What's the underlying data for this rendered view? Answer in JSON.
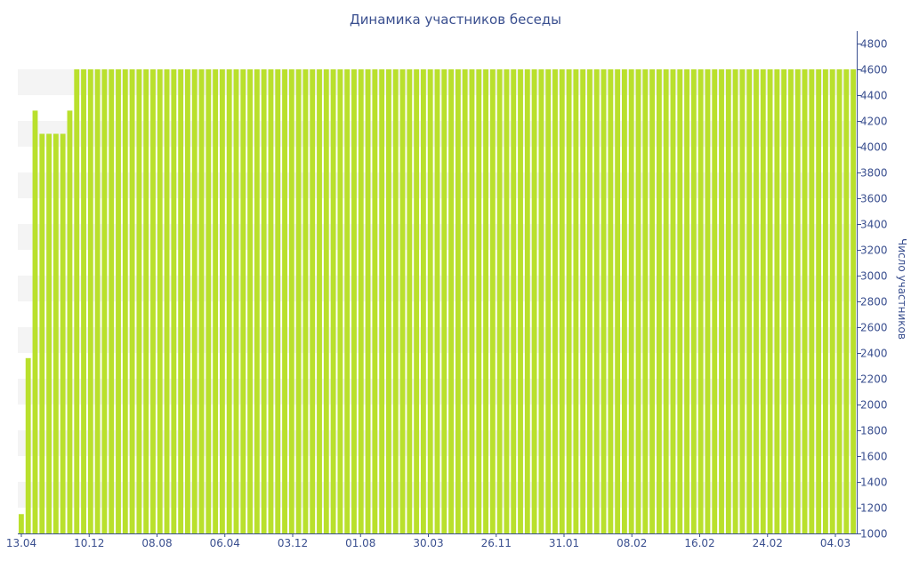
{
  "chart_data": {
    "type": "bar",
    "title": "Динамика участников беседы",
    "ylabel": "Число участников",
    "xlabel": "",
    "ylim": [
      1000,
      4800
    ],
    "y_ticks": [
      1000,
      1200,
      1400,
      1600,
      1800,
      2000,
      2200,
      2400,
      2600,
      2800,
      3000,
      3200,
      3400,
      3600,
      3800,
      4000,
      4200,
      4400,
      4600,
      4800
    ],
    "x_ticks": [
      "13.04",
      "10.12",
      "08.08",
      "06.04",
      "03.12",
      "01.08",
      "30.03",
      "26.11",
      "31.01",
      "08.02",
      "16.02",
      "24.02",
      "04.03"
    ],
    "bar_color": "#b9e02c",
    "axis_color": "#3a4f8f",
    "grid": "alternating horizontal bands",
    "y_axis_position": "right",
    "values": [
      1150,
      2360,
      4280,
      4100,
      4100,
      4100,
      4100,
      4280,
      4600,
      4600,
      4600,
      4600,
      4600,
      4600,
      4600,
      4600,
      4600,
      4600,
      4600,
      4600,
      4600,
      4600,
      4600,
      4600,
      4600,
      4600,
      4600,
      4600,
      4600,
      4600,
      4600,
      4600,
      4600,
      4600,
      4600,
      4600,
      4600,
      4600,
      4600,
      4600,
      4600,
      4600,
      4600,
      4600,
      4600,
      4600,
      4600,
      4600,
      4600,
      4600,
      4600,
      4600,
      4600,
      4600,
      4600,
      4600,
      4600,
      4600,
      4600,
      4600,
      4600,
      4600,
      4600,
      4600,
      4600,
      4600,
      4600,
      4600,
      4600,
      4600,
      4600,
      4600,
      4600,
      4600,
      4600,
      4600,
      4600,
      4600,
      4600,
      4600,
      4600,
      4600,
      4600,
      4600,
      4600,
      4600,
      4600,
      4600,
      4600,
      4600,
      4600,
      4600,
      4600,
      4600,
      4600,
      4600,
      4600,
      4600,
      4600,
      4600,
      4600,
      4600,
      4600,
      4600,
      4600,
      4600,
      4600,
      4600,
      4600,
      4600,
      4600,
      4600,
      4600,
      4600,
      4600,
      4600,
      4600,
      4600,
      4600,
      4600,
      4600
    ]
  }
}
